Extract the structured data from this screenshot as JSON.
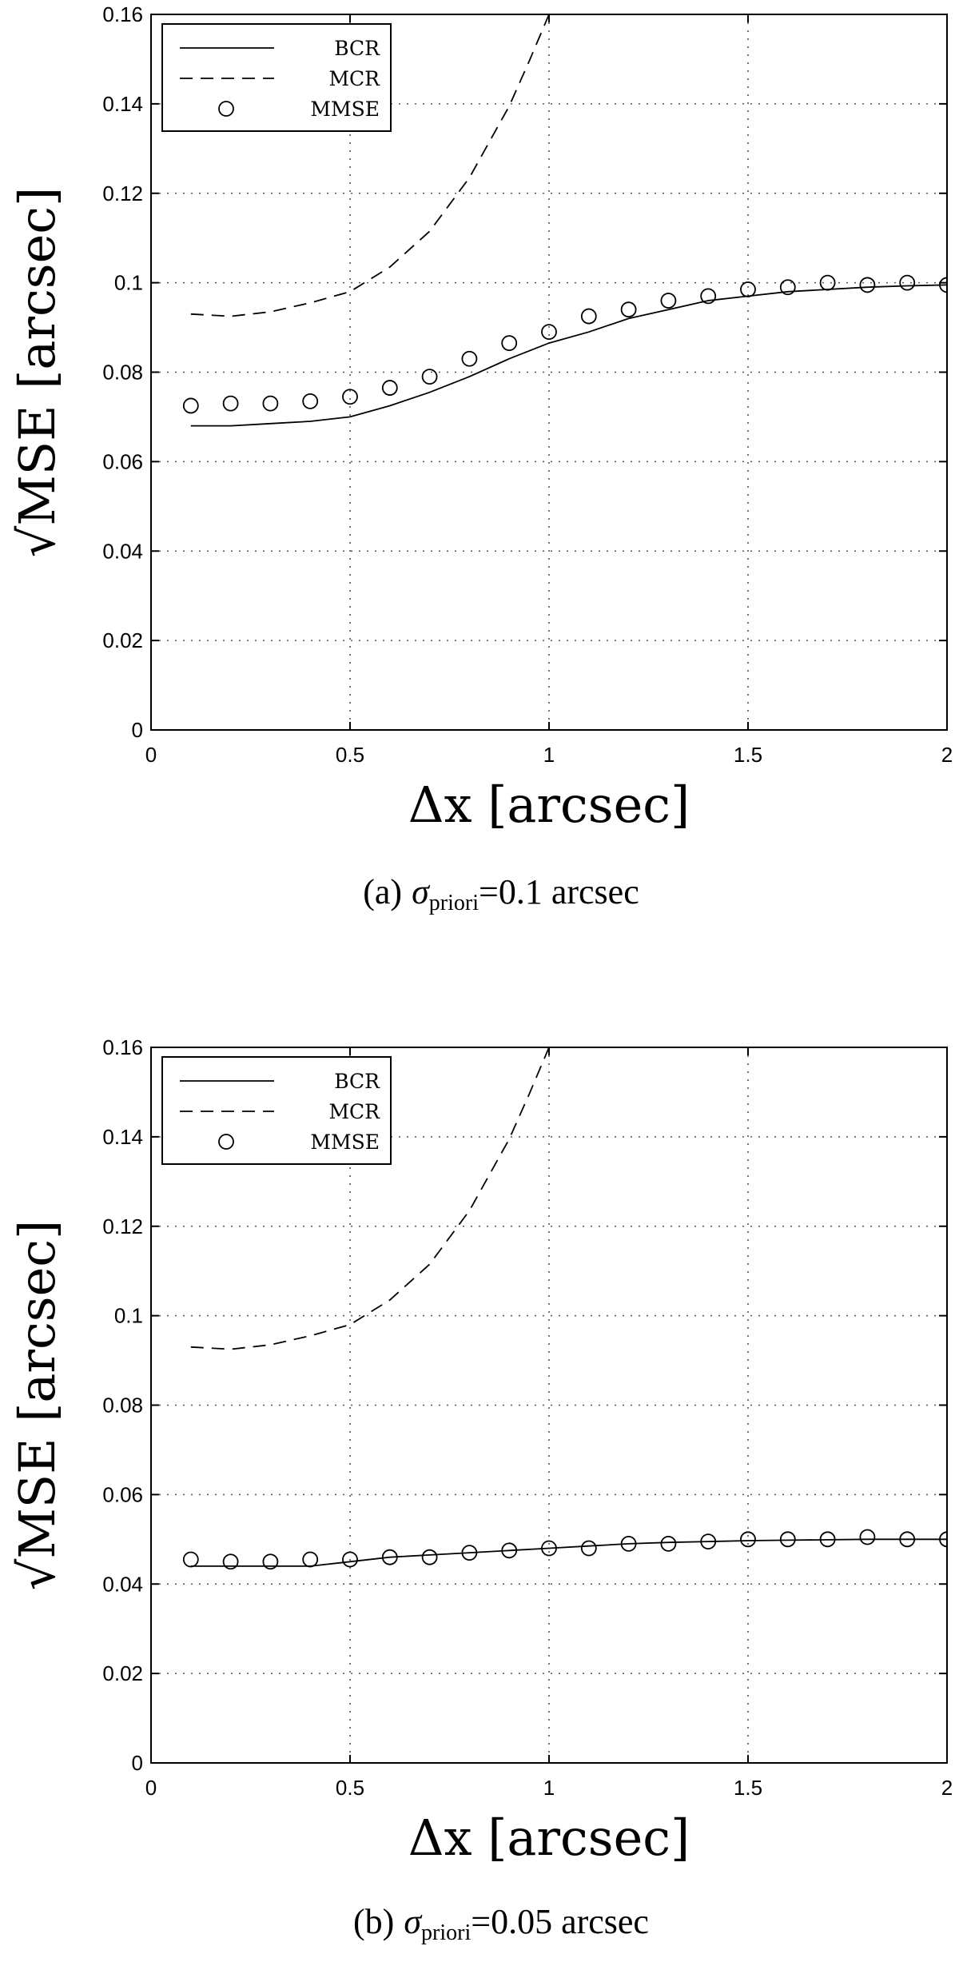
{
  "chart_data": [
    {
      "type": "line",
      "title": "",
      "caption": {
        "prefix": "(a)",
        "sub": "priori",
        "suffix": "=0.1 arcsec"
      },
      "xlabel": "Δx [arcsec]",
      "ylabel": "√MSE [arcsec]",
      "xlim": [
        0,
        2
      ],
      "ylim": [
        0,
        0.16
      ],
      "xticks": [
        0,
        0.5,
        1,
        1.5,
        2
      ],
      "xtick_labels": [
        "0",
        "0.5",
        "1",
        "1.5",
        "2"
      ],
      "yticks": [
        0,
        0.02,
        0.04,
        0.06,
        0.08,
        0.1,
        0.12,
        0.14,
        0.16
      ],
      "ytick_labels": [
        "0",
        "0.02",
        "0.04",
        "0.06",
        "0.08",
        "0.1",
        "0.12",
        "0.14",
        "0.16"
      ],
      "grid": true,
      "legend": "top-left",
      "series": [
        {
          "name": "BCR",
          "style": "solid",
          "x": [
            0.1,
            0.2,
            0.3,
            0.4,
            0.5,
            0.6,
            0.7,
            0.8,
            0.9,
            1.0,
            1.1,
            1.2,
            1.3,
            1.4,
            1.5,
            1.6,
            1.7,
            1.8,
            1.9,
            2.0
          ],
          "y": [
            0.068,
            0.068,
            0.0685,
            0.069,
            0.07,
            0.0725,
            0.0755,
            0.079,
            0.083,
            0.0865,
            0.089,
            0.092,
            0.094,
            0.096,
            0.097,
            0.098,
            0.0985,
            0.099,
            0.0993,
            0.0995
          ]
        },
        {
          "name": "MCR",
          "style": "dashed",
          "x": [
            0.1,
            0.2,
            0.3,
            0.4,
            0.5,
            0.6,
            0.7,
            0.8,
            0.9,
            0.95,
            1.0
          ],
          "y": [
            0.093,
            0.0925,
            0.0935,
            0.0955,
            0.098,
            0.1035,
            0.1115,
            0.1235,
            0.1395,
            0.1495,
            0.16
          ]
        },
        {
          "name": "MMSE",
          "style": "markers",
          "x": [
            0.1,
            0.2,
            0.3,
            0.4,
            0.5,
            0.6,
            0.7,
            0.8,
            0.9,
            1.0,
            1.1,
            1.2,
            1.3,
            1.4,
            1.5,
            1.6,
            1.7,
            1.8,
            1.9,
            2.0
          ],
          "y": [
            0.0725,
            0.073,
            0.073,
            0.0735,
            0.0745,
            0.0765,
            0.079,
            0.083,
            0.0865,
            0.089,
            0.0925,
            0.094,
            0.096,
            0.097,
            0.0985,
            0.099,
            0.1,
            0.0995,
            0.1,
            0.0995
          ]
        }
      ]
    },
    {
      "type": "line",
      "title": "",
      "caption": {
        "prefix": "(b)",
        "sub": "priori",
        "suffix": "=0.05 arcsec"
      },
      "xlabel": "Δx [arcsec]",
      "ylabel": "√MSE [arcsec]",
      "xlim": [
        0,
        2
      ],
      "ylim": [
        0,
        0.16
      ],
      "xticks": [
        0,
        0.5,
        1,
        1.5,
        2
      ],
      "xtick_labels": [
        "0",
        "0.5",
        "1",
        "1.5",
        "2"
      ],
      "yticks": [
        0,
        0.02,
        0.04,
        0.06,
        0.08,
        0.1,
        0.12,
        0.14,
        0.16
      ],
      "ytick_labels": [
        "0",
        "0.02",
        "0.04",
        "0.06",
        "0.08",
        "0.1",
        "0.12",
        "0.14",
        "0.16"
      ],
      "grid": true,
      "legend": "top-left",
      "series": [
        {
          "name": "BCR",
          "style": "solid",
          "x": [
            0.1,
            0.2,
            0.3,
            0.4,
            0.5,
            0.6,
            0.7,
            0.8,
            0.9,
            1.0,
            1.1,
            1.2,
            1.3,
            1.4,
            1.5,
            1.6,
            1.7,
            1.8,
            1.9,
            2.0
          ],
          "y": [
            0.044,
            0.044,
            0.044,
            0.044,
            0.045,
            0.046,
            0.0465,
            0.047,
            0.0475,
            0.048,
            0.0485,
            0.049,
            0.0493,
            0.0495,
            0.0497,
            0.0498,
            0.0499,
            0.05,
            0.05,
            0.05
          ]
        },
        {
          "name": "MCR",
          "style": "dashed",
          "x": [
            0.1,
            0.2,
            0.3,
            0.4,
            0.5,
            0.6,
            0.7,
            0.8,
            0.9,
            0.95,
            1.0
          ],
          "y": [
            0.093,
            0.0925,
            0.0935,
            0.0955,
            0.098,
            0.1035,
            0.1115,
            0.1235,
            0.1395,
            0.1495,
            0.16
          ]
        },
        {
          "name": "MMSE",
          "style": "markers",
          "x": [
            0.1,
            0.2,
            0.3,
            0.4,
            0.5,
            0.6,
            0.7,
            0.8,
            0.9,
            1.0,
            1.1,
            1.2,
            1.3,
            1.4,
            1.5,
            1.6,
            1.7,
            1.8,
            1.9,
            2.0
          ],
          "y": [
            0.0455,
            0.045,
            0.045,
            0.0455,
            0.0455,
            0.046,
            0.046,
            0.047,
            0.0475,
            0.048,
            0.048,
            0.049,
            0.049,
            0.0495,
            0.05,
            0.05,
            0.05,
            0.0505,
            0.05,
            0.05
          ]
        }
      ]
    }
  ]
}
